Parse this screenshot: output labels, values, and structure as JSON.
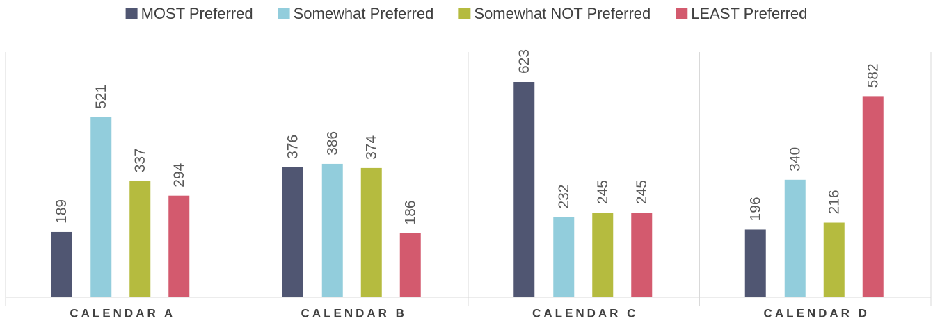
{
  "chart_data": {
    "type": "bar",
    "categories": [
      "CALENDAR A",
      "CALENDAR B",
      "CALENDAR C",
      "CALENDAR D"
    ],
    "series": [
      {
        "name": "MOST Preferred",
        "color": "#505672",
        "values": [
          189,
          376,
          623,
          196
        ]
      },
      {
        "name": "Somewhat Preferred",
        "color": "#92cddc",
        "values": [
          521,
          386,
          232,
          340
        ]
      },
      {
        "name": "Somewhat NOT Preferred",
        "color": "#b5bb3f",
        "values": [
          337,
          374,
          245,
          216
        ]
      },
      {
        "name": "LEAST Preferred",
        "color": "#d35a6e",
        "values": [
          294,
          186,
          245,
          582
        ]
      }
    ],
    "legend": "top"
  }
}
